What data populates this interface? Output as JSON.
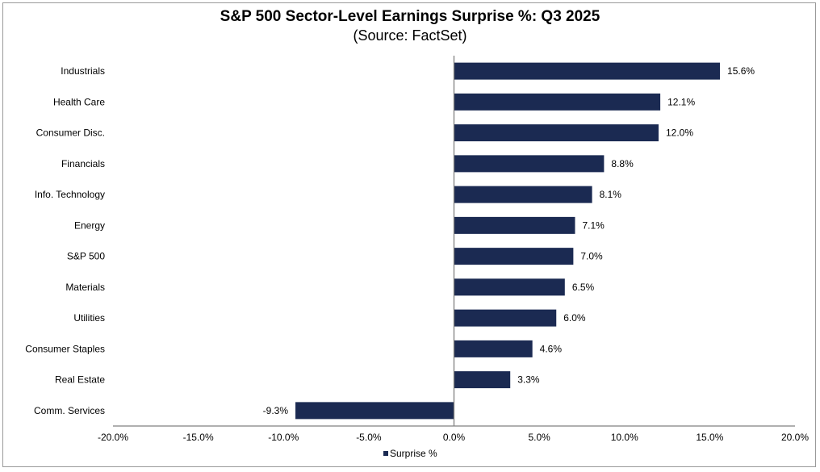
{
  "chart_data": {
    "type": "bar",
    "orientation": "horizontal",
    "title": "S&P 500 Sector-Level Earnings Surprise %: Q3 2025",
    "subtitle": "(Source: FactSet)",
    "categories": [
      "Industrials",
      "Health Care",
      "Consumer Disc.",
      "Financials",
      "Info. Technology",
      "Energy",
      "S&P 500",
      "Materials",
      "Utilities",
      "Consumer Staples",
      "Real Estate",
      "Comm. Services"
    ],
    "series": [
      {
        "name": "Surprise %",
        "values": [
          15.6,
          12.1,
          12.0,
          8.8,
          8.1,
          7.1,
          7.0,
          6.5,
          6.0,
          4.6,
          3.3,
          -9.3
        ]
      }
    ],
    "data_labels": [
      "15.6%",
      "12.1%",
      "12.0%",
      "8.8%",
      "8.1%",
      "7.1%",
      "7.0%",
      "6.5%",
      "6.0%",
      "4.6%",
      "3.3%",
      "-9.3%"
    ],
    "xlim": [
      -20,
      20
    ],
    "xticks": [
      -20,
      -15,
      -10,
      -5,
      0,
      5,
      10,
      15,
      20
    ],
    "xtick_labels": [
      "-20.0%",
      "-15.0%",
      "-10.0%",
      "-5.0%",
      "0.0%",
      "5.0%",
      "10.0%",
      "15.0%",
      "20.0%"
    ],
    "grid": false,
    "legend": "bottom",
    "colors": {
      "bar": "#1b2a52",
      "axis": "#808080"
    }
  }
}
